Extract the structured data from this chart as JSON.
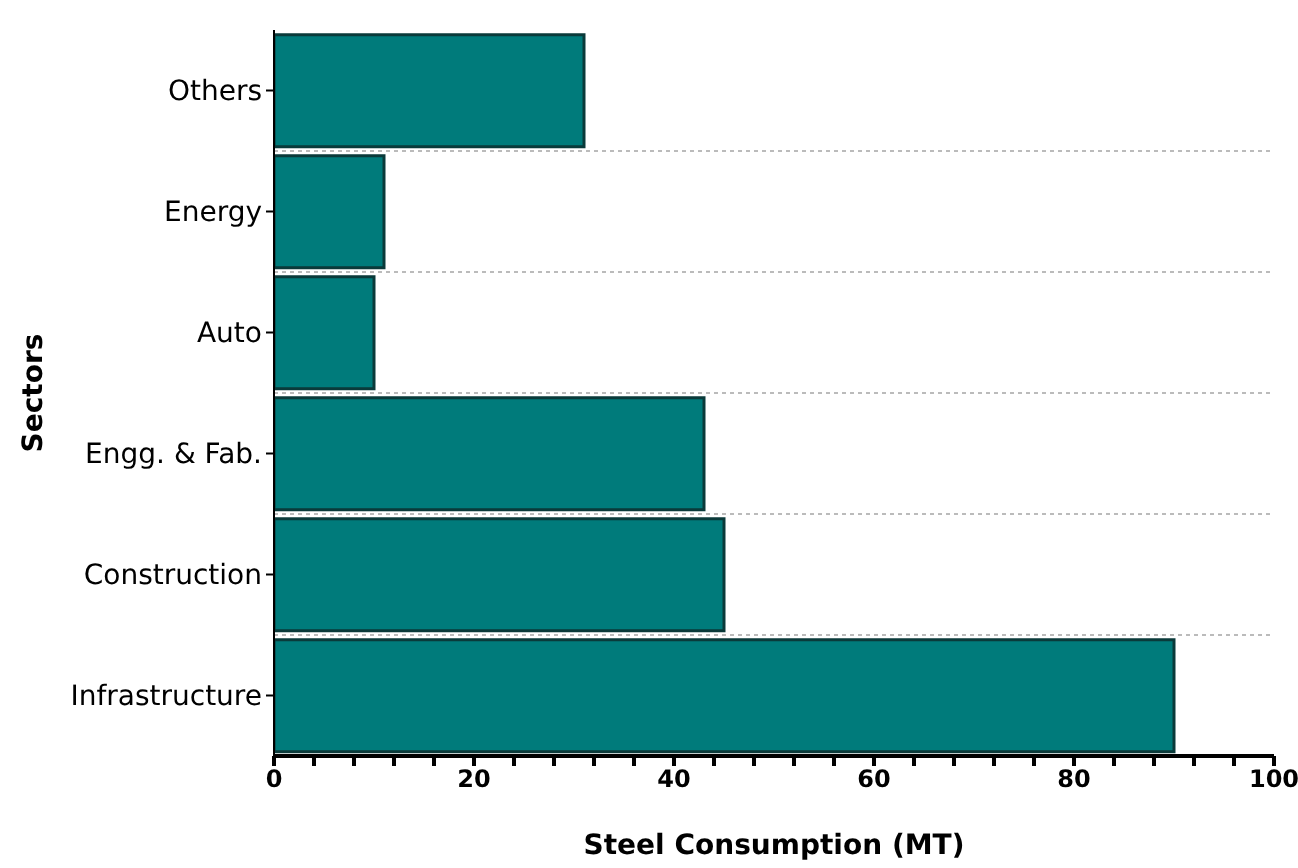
{
  "chart_data": {
    "type": "bar",
    "orientation": "horizontal",
    "xlabel": "Steel Consumption (MT)",
    "ylabel": "Sectors",
    "categories": [
      "Others",
      "Energy",
      "Auto",
      "Engg. & Fab.",
      "Construction",
      "Infrastructure"
    ],
    "values": [
      31,
      11,
      10,
      43,
      45,
      90
    ],
    "color": "#007b7b",
    "xlim": [
      0,
      100
    ],
    "xticks": [
      0,
      {
        "value": 4,
        "label": null
      },
      {
        "value": 8,
        "label": null
      },
      {
        "value": 12,
        "label": null
      },
      {
        "value": 16,
        "label": null
      },
      20,
      {
        "value": 24,
        "label": null
      },
      {
        "value": 28,
        "label": null
      },
      {
        "value": 32,
        "label": null
      },
      {
        "value": 36,
        "label": null
      },
      40,
      {
        "value": 44,
        "label": null
      },
      {
        "value": 48,
        "label": null
      },
      {
        "value": 52,
        "label": null
      },
      {
        "value": 56,
        "label": null
      },
      60,
      {
        "value": 64,
        "label": null
      },
      {
        "value": 68,
        "label": null
      },
      {
        "value": 72,
        "label": null
      },
      {
        "value": 76,
        "label": null
      },
      80,
      {
        "value": 84,
        "label": null
      },
      {
        "value": 88,
        "label": null
      },
      {
        "value": 92,
        "label": null
      },
      {
        "value": 96,
        "label": null
      },
      100
    ],
    "grid": "y"
  }
}
